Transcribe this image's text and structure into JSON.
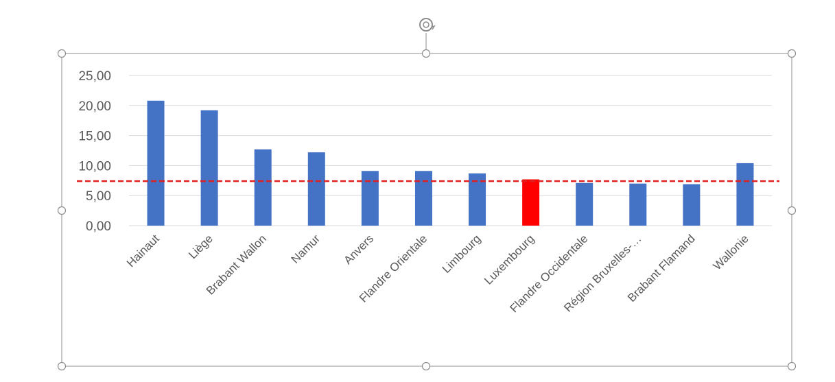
{
  "chart_data": {
    "type": "bar",
    "title": "",
    "xlabel": "",
    "ylabel": "",
    "categories": [
      "Hainaut",
      "Liège",
      "Brabant Wallon",
      "Namur",
      "Anvers",
      "Flandre Orientale",
      "Limbourg",
      "Luxembourg",
      "Flandre Occidentale",
      "Région Bruxelles-…",
      "Brabant Flamand",
      "Wallonie"
    ],
    "values": [
      20.8,
      19.2,
      12.7,
      12.2,
      9.1,
      9.1,
      8.7,
      7.7,
      7.1,
      7.0,
      6.9,
      10.4
    ],
    "ylim": [
      0,
      25
    ],
    "yticks": [
      "0,00",
      "5,00",
      "10,00",
      "15,00",
      "20,00",
      "25,00"
    ],
    "reference_line": {
      "value": 7.4,
      "style": "dashed",
      "color": "#e02020"
    },
    "grid": true,
    "legend": "none",
    "colors": {
      "bar": "#4472c4",
      "highlight_bar": "#ff0000",
      "highlight_category": "Luxembourg",
      "gridline": "#d9d9d9",
      "frame": "#8c8c8c"
    }
  }
}
